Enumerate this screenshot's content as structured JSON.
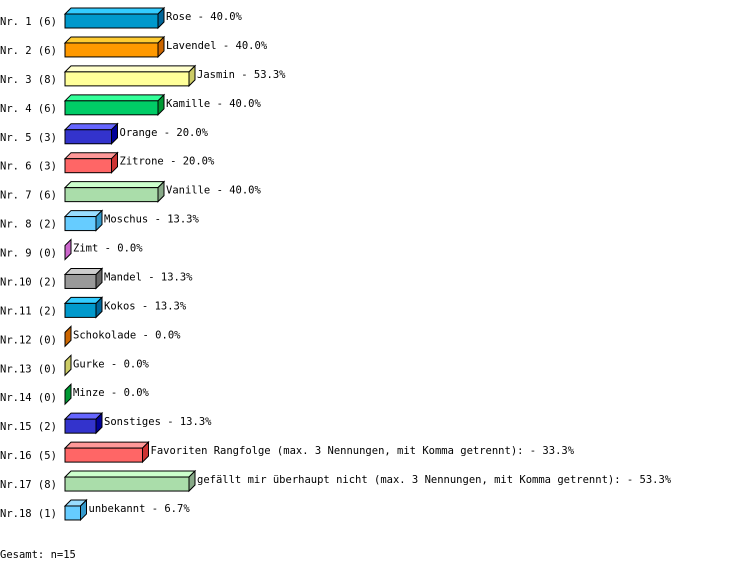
{
  "chart_data": {
    "type": "bar",
    "orientation": "horizontal",
    "style": "3d",
    "categories": [
      "Nr. 1",
      "Nr. 2",
      "Nr. 3",
      "Nr. 4",
      "Nr. 5",
      "Nr. 6",
      "Nr. 7",
      "Nr. 8",
      "Nr. 9",
      "Nr.10",
      "Nr.11",
      "Nr.12",
      "Nr.13",
      "Nr.14",
      "Nr.15",
      "Nr.16",
      "Nr.17",
      "Nr.18"
    ],
    "counts": [
      6,
      6,
      8,
      6,
      3,
      3,
      6,
      2,
      0,
      2,
      2,
      0,
      0,
      0,
      2,
      5,
      8,
      1
    ],
    "labels": [
      "Rose",
      "Lavendel",
      "Jasmin",
      "Kamille",
      "Orange",
      "Zitrone",
      "Vanille",
      "Moschus",
      "Zimt",
      "Mandel",
      "Kokos",
      "Schokolade",
      "Gurke",
      "Minze",
      "Sonstiges",
      "Favoriten Rangfolge (max. 3 Nennungen, mit Komma getrennt):",
      "gefällt mir überhaupt nicht (max. 3 Nennungen, mit Komma getrennt):",
      "unbekannt"
    ],
    "percents": [
      "40.0%",
      "40.0%",
      "53.3%",
      "40.0%",
      "20.0%",
      "20.0%",
      "40.0%",
      "13.3%",
      "0.0%",
      "13.3%",
      "13.3%",
      "0.0%",
      "0.0%",
      "0.0%",
      "13.3%",
      "33.3%",
      "53.3%",
      "6.7%"
    ],
    "colors": [
      "#0099cc",
      "#ff9900",
      "#ffff99",
      "#00cc66",
      "#3333cc",
      "#ff6666",
      "#aaddaa",
      "#66ccff",
      "#cc66cc",
      "#999999",
      "#0099cc",
      "#cc6600",
      "#cccc66",
      "#009933",
      "#3333cc",
      "#ff6666",
      "#aaddaa",
      "#66ccff"
    ],
    "top_colors": [
      "#33ccff",
      "#ffcc33",
      "#ffffcc",
      "#33ff99",
      "#6666ff",
      "#ff9999",
      "#ccffcc",
      "#99ddff",
      "#ee99ee",
      "#cccccc",
      "#33ccff",
      "#ee8833",
      "#eeee99",
      "#33cc66",
      "#6666ff",
      "#ff9999",
      "#ccffcc",
      "#99ddff"
    ],
    "side_colors": [
      "#006699",
      "#cc6600",
      "#cccc66",
      "#009933",
      "#000099",
      "#cc3333",
      "#88aa88",
      "#3399cc",
      "#993399",
      "#666666",
      "#006699",
      "#993300",
      "#999933",
      "#006622",
      "#000099",
      "#cc3333",
      "#88aa88",
      "#3399cc"
    ]
  },
  "footer": "Gesamt: n=15"
}
